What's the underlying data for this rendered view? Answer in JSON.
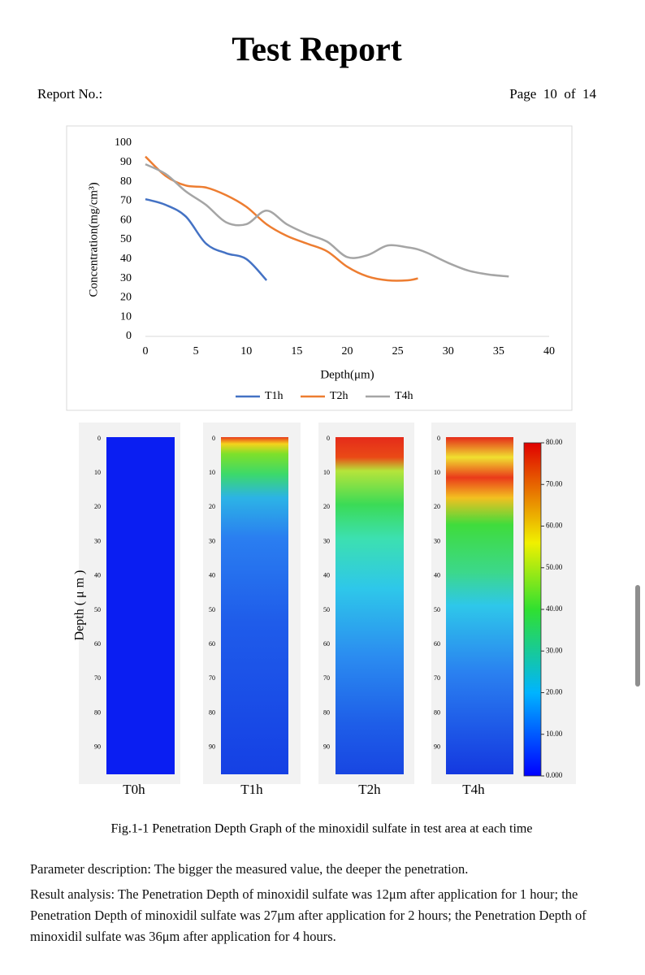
{
  "header": {
    "title": "Test Report",
    "report_no": "Report No.:",
    "page": "Page  10  of  14"
  },
  "chart_data": {
    "type": "line",
    "xlabel": "Depth(μm)",
    "ylabel": "Concentration(mg/cm³)",
    "x": [
      0,
      2,
      4,
      6,
      8,
      10,
      12,
      14,
      16,
      18,
      20,
      22,
      24,
      26,
      27,
      28,
      30,
      32,
      34,
      36
    ],
    "series": [
      {
        "name": "T1h",
        "color": "#4472c4",
        "values": [
          71,
          68,
          62,
          48,
          43,
          40,
          29,
          null,
          null,
          null,
          null,
          null,
          null,
          null,
          null,
          null,
          null,
          null,
          null,
          null
        ]
      },
      {
        "name": "T2h",
        "color": "#ed7d31",
        "values": [
          93,
          83,
          78,
          77,
          73,
          67,
          58,
          52,
          48,
          44,
          36,
          31,
          29,
          29,
          30,
          null,
          null,
          null,
          null,
          null
        ]
      },
      {
        "name": "T4h",
        "color": "#a5a5a5",
        "values": [
          89,
          84,
          75,
          68,
          59,
          58,
          65,
          58,
          53,
          49,
          41,
          42,
          47,
          46,
          45,
          43,
          38,
          34,
          32,
          31
        ]
      }
    ],
    "xlim": [
      0,
      40
    ],
    "xticks": [
      0,
      5,
      10,
      15,
      20,
      25,
      30,
      35,
      40
    ],
    "ylim": [
      0,
      100
    ],
    "yticks": [
      0,
      10,
      20,
      30,
      40,
      50,
      60,
      70,
      80,
      90,
      100
    ],
    "legend": "bottom"
  },
  "heatmaps": {
    "ylabel": "Depth ( μ m )",
    "panels": [
      {
        "label": "T0h"
      },
      {
        "label": "T1h"
      },
      {
        "label": "T2h"
      },
      {
        "label": "T4h"
      }
    ],
    "yticks": [
      0,
      10,
      20,
      30,
      40,
      50,
      60,
      70,
      80,
      90
    ],
    "colorbar_ticks": [
      {
        "value": 80,
        "label": "80.00"
      },
      {
        "value": 70,
        "label": "70.00"
      },
      {
        "value": 60,
        "label": "60.00"
      },
      {
        "value": 50,
        "label": "50.00"
      },
      {
        "value": 40,
        "label": "40.00"
      },
      {
        "value": 30,
        "label": "30.00"
      },
      {
        "value": 20,
        "label": "20.00"
      },
      {
        "value": 10,
        "label": "10.00"
      },
      {
        "value": 0,
        "label": "0.000"
      }
    ],
    "colorbar_range": [
      0,
      80
    ]
  },
  "caption": "Fig.1-1 Penetration Depth Graph of the minoxidil sulfate in test area at each time",
  "paragraphs": [
    "Parameter description: The bigger the measured value, the deeper the penetration.",
    "Result analysis: The Penetration Depth of minoxidil sulfate was 12μm after application for 1 hour; the Penetration Depth of minoxidil sulfate was 27μm after application for 2 hours; the Penetration Depth of minoxidil sulfate was 36μm after application for 4 hours."
  ]
}
